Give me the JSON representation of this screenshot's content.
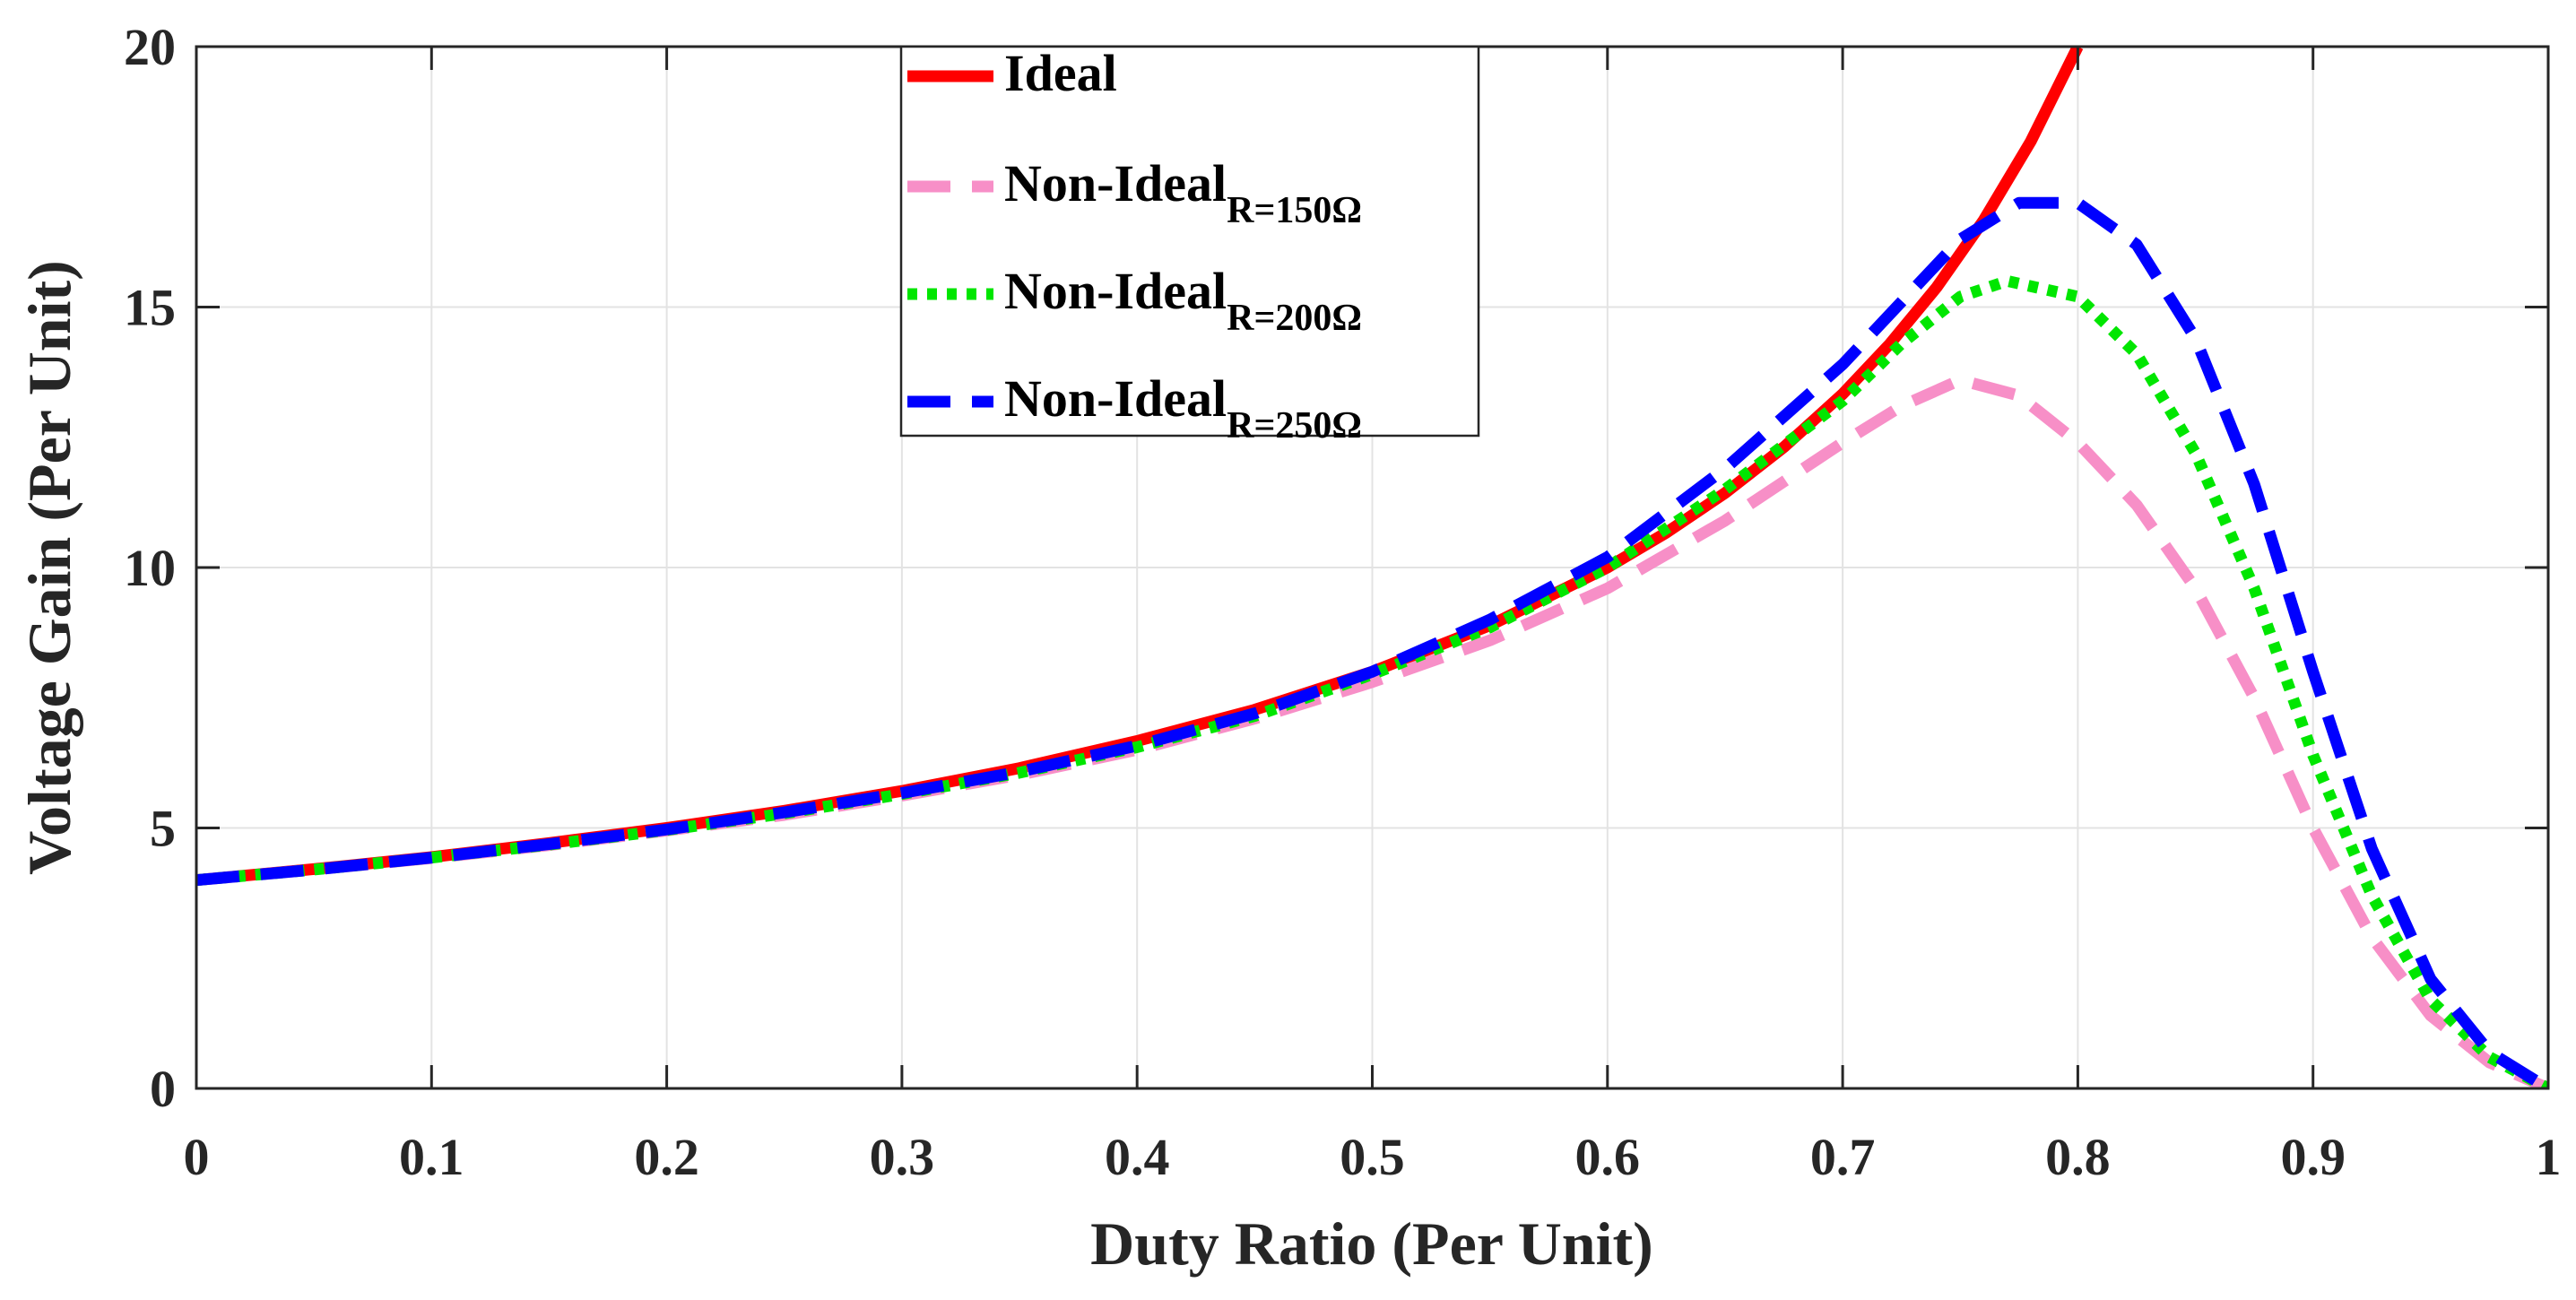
{
  "chart_data": {
    "type": "line",
    "title": "",
    "xlabel": "Duty Ratio (Per Unit)",
    "ylabel": "Voltage Gain (Per Unit)",
    "xlim": [
      0,
      1
    ],
    "ylim": [
      0,
      20
    ],
    "grid": true,
    "legend_position": "top-center",
    "x_ticks": [
      0,
      0.1,
      0.2,
      0.3,
      0.4,
      0.5,
      0.6,
      0.7,
      0.8,
      0.9,
      1
    ],
    "x_tick_labels": [
      "0",
      "0.1",
      "0.2",
      "0.3",
      "0.4",
      "0.5",
      "0.6",
      "0.7",
      "0.8",
      "0.9",
      "1"
    ],
    "y_ticks": [
      0,
      5,
      10,
      15,
      20
    ],
    "y_tick_labels": [
      "0",
      "5",
      "10",
      "15",
      "20"
    ],
    "series": [
      {
        "name": "Ideal",
        "legend_main": "Ideal",
        "legend_sub": "",
        "color": "#ff0000",
        "style": "solid",
        "points": [
          [
            0,
            4
          ],
          [
            0.05,
            4.21
          ],
          [
            0.1,
            4.44
          ],
          [
            0.15,
            4.71
          ],
          [
            0.2,
            5
          ],
          [
            0.25,
            5.33
          ],
          [
            0.3,
            5.71
          ],
          [
            0.35,
            6.15
          ],
          [
            0.4,
            6.67
          ],
          [
            0.45,
            7.27
          ],
          [
            0.5,
            8
          ],
          [
            0.55,
            8.89
          ],
          [
            0.6,
            10
          ],
          [
            0.625,
            10.67
          ],
          [
            0.65,
            11.43
          ],
          [
            0.675,
            12.31
          ],
          [
            0.7,
            13.33
          ],
          [
            0.72,
            14.29
          ],
          [
            0.74,
            15.38
          ],
          [
            0.76,
            16.67
          ],
          [
            0.78,
            18.18
          ],
          [
            0.8,
            20
          ]
        ]
      },
      {
        "name": "Non-Ideal R=150Ω",
        "legend_main": "Non-Ideal",
        "legend_sub": "R=150Ω",
        "color": "#f78fc7",
        "style": "dashed",
        "points": [
          [
            0,
            4
          ],
          [
            0.05,
            4.2
          ],
          [
            0.1,
            4.42
          ],
          [
            0.15,
            4.67
          ],
          [
            0.2,
            4.95
          ],
          [
            0.25,
            5.25
          ],
          [
            0.3,
            5.62
          ],
          [
            0.35,
            6.02
          ],
          [
            0.4,
            6.5
          ],
          [
            0.45,
            7.1
          ],
          [
            0.5,
            7.8
          ],
          [
            0.55,
            8.6
          ],
          [
            0.6,
            9.6
          ],
          [
            0.65,
            10.9
          ],
          [
            0.7,
            12.4
          ],
          [
            0.725,
            13.1
          ],
          [
            0.75,
            13.6
          ],
          [
            0.775,
            13.3
          ],
          [
            0.8,
            12.4
          ],
          [
            0.825,
            11.2
          ],
          [
            0.85,
            9.6
          ],
          [
            0.875,
            7.5
          ],
          [
            0.9,
            5
          ],
          [
            0.925,
            2.9
          ],
          [
            0.95,
            1.4
          ],
          [
            0.975,
            0.5
          ],
          [
            1,
            0
          ]
        ]
      },
      {
        "name": "Non-Ideal R=200Ω",
        "legend_main": "Non-Ideal",
        "legend_sub": "R=200Ω",
        "color": "#00e600",
        "style": "dotted",
        "points": [
          [
            0,
            4
          ],
          [
            0.05,
            4.2
          ],
          [
            0.1,
            4.43
          ],
          [
            0.15,
            4.68
          ],
          [
            0.2,
            4.96
          ],
          [
            0.25,
            5.28
          ],
          [
            0.3,
            5.65
          ],
          [
            0.35,
            6.06
          ],
          [
            0.4,
            6.55
          ],
          [
            0.45,
            7.15
          ],
          [
            0.5,
            7.95
          ],
          [
            0.55,
            8.85
          ],
          [
            0.6,
            10
          ],
          [
            0.65,
            11.5
          ],
          [
            0.7,
            13.2
          ],
          [
            0.725,
            14.3
          ],
          [
            0.75,
            15.2
          ],
          [
            0.77,
            15.5
          ],
          [
            0.8,
            15.2
          ],
          [
            0.825,
            14.1
          ],
          [
            0.85,
            12.2
          ],
          [
            0.875,
            9.6
          ],
          [
            0.9,
            6.4
          ],
          [
            0.925,
            3.7
          ],
          [
            0.95,
            1.7
          ],
          [
            0.975,
            0.6
          ],
          [
            1,
            0
          ]
        ]
      },
      {
        "name": "Non-Ideal R=250Ω",
        "legend_main": "Non-Ideal",
        "legend_sub": "R=250Ω",
        "color": "#0000ff",
        "style": "dashed",
        "points": [
          [
            0,
            4
          ],
          [
            0.05,
            4.2
          ],
          [
            0.1,
            4.43
          ],
          [
            0.15,
            4.69
          ],
          [
            0.2,
            4.97
          ],
          [
            0.25,
            5.3
          ],
          [
            0.3,
            5.67
          ],
          [
            0.35,
            6.08
          ],
          [
            0.4,
            6.58
          ],
          [
            0.45,
            7.2
          ],
          [
            0.5,
            8
          ],
          [
            0.55,
            9
          ],
          [
            0.6,
            10.2
          ],
          [
            0.65,
            11.9
          ],
          [
            0.7,
            13.9
          ],
          [
            0.725,
            15.1
          ],
          [
            0.75,
            16.3
          ],
          [
            0.775,
            17
          ],
          [
            0.8,
            17
          ],
          [
            0.825,
            16.2
          ],
          [
            0.85,
            14.4
          ],
          [
            0.875,
            11.6
          ],
          [
            0.9,
            8
          ],
          [
            0.925,
            4.6
          ],
          [
            0.95,
            2.1
          ],
          [
            0.975,
            0.7
          ],
          [
            1,
            0
          ]
        ]
      }
    ]
  }
}
